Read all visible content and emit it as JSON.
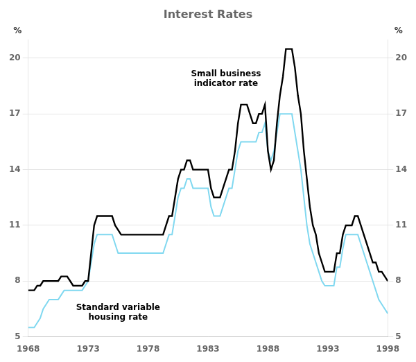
{
  "chart_data": {
    "type": "line",
    "title": "Interest Rates",
    "x": [
      1968.0,
      1968.25,
      1968.5,
      1968.75,
      1969.0,
      1969.25,
      1969.5,
      1969.75,
      1970.0,
      1970.25,
      1970.5,
      1970.75,
      1971.0,
      1971.25,
      1971.5,
      1971.75,
      1972.0,
      1972.25,
      1972.5,
      1972.75,
      1973.0,
      1973.25,
      1973.5,
      1973.75,
      1974.0,
      1974.25,
      1974.5,
      1974.75,
      1975.0,
      1975.25,
      1975.5,
      1975.75,
      1976.0,
      1976.25,
      1976.5,
      1976.75,
      1977.0,
      1977.25,
      1977.5,
      1977.75,
      1978.0,
      1978.25,
      1978.5,
      1978.75,
      1979.0,
      1979.25,
      1979.5,
      1979.75,
      1980.0,
      1980.25,
      1980.5,
      1980.75,
      1981.0,
      1981.25,
      1981.5,
      1981.75,
      1982.0,
      1982.25,
      1982.5,
      1982.75,
      1983.0,
      1983.25,
      1983.5,
      1983.75,
      1984.0,
      1984.25,
      1984.5,
      1984.75,
      1985.0,
      1985.25,
      1985.5,
      1985.75,
      1986.0,
      1986.25,
      1986.5,
      1986.75,
      1987.0,
      1987.25,
      1987.5,
      1987.75,
      1988.0,
      1988.25,
      1988.5,
      1988.75,
      1989.0,
      1989.25,
      1989.5,
      1989.75,
      1990.0,
      1990.25,
      1990.5,
      1990.75,
      1991.0,
      1991.25,
      1991.5,
      1991.75,
      1992.0,
      1992.25,
      1992.5,
      1992.75,
      1993.0,
      1993.25,
      1993.5,
      1993.75,
      1994.0,
      1994.25,
      1994.5,
      1994.75,
      1995.0,
      1995.25,
      1995.5,
      1995.75,
      1996.0,
      1996.25,
      1996.5,
      1996.75,
      1997.0,
      1997.25,
      1997.5,
      1997.75,
      1998.0
    ],
    "series": [
      {
        "color": "#80d8f0",
        "values": [
          5.5,
          5.5,
          5.5,
          5.75,
          6.0,
          6.5,
          6.75,
          7.0,
          7.0,
          7.0,
          7.0,
          7.25,
          7.5,
          7.5,
          7.5,
          7.5,
          7.5,
          7.5,
          7.5,
          7.75,
          8.0,
          9.0,
          10.0,
          10.5,
          10.5,
          10.5,
          10.5,
          10.5,
          10.5,
          10.0,
          9.5,
          9.5,
          9.5,
          9.5,
          9.5,
          9.5,
          9.5,
          9.5,
          9.5,
          9.5,
          9.5,
          9.5,
          9.5,
          9.5,
          9.5,
          9.5,
          10.0,
          10.5,
          10.5,
          11.5,
          12.5,
          13.0,
          13.0,
          13.5,
          13.5,
          13.0,
          13.0,
          13.0,
          13.0,
          13.0,
          13.0,
          12.0,
          11.5,
          11.5,
          11.5,
          12.0,
          12.5,
          13.0,
          13.0,
          14.0,
          15.0,
          15.5,
          15.5,
          15.5,
          15.5,
          15.5,
          15.5,
          16.0,
          16.0,
          16.5,
          15.0,
          14.5,
          15.0,
          16.0,
          17.0,
          17.0,
          17.0,
          17.0,
          17.0,
          16.0,
          15.0,
          14.0,
          12.5,
          11.0,
          10.0,
          9.5,
          9.0,
          8.5,
          8.0,
          7.75,
          7.75,
          7.75,
          7.75,
          8.75,
          8.75,
          9.75,
          10.5,
          10.5,
          10.5,
          10.5,
          10.5,
          10.0,
          9.5,
          9.0,
          8.5,
          8.0,
          7.5,
          7.0,
          6.75,
          6.5,
          6.25
        ]
      },
      {
        "color": "#000000",
        "values": [
          7.5,
          7.5,
          7.5,
          7.75,
          7.75,
          8.0,
          8.0,
          8.0,
          8.0,
          8.0,
          8.0,
          8.25,
          8.25,
          8.25,
          8.0,
          7.75,
          7.75,
          7.75,
          7.75,
          8.0,
          8.0,
          9.5,
          11.0,
          11.5,
          11.5,
          11.5,
          11.5,
          11.5,
          11.5,
          11.0,
          10.75,
          10.5,
          10.5,
          10.5,
          10.5,
          10.5,
          10.5,
          10.5,
          10.5,
          10.5,
          10.5,
          10.5,
          10.5,
          10.5,
          10.5,
          10.5,
          11.0,
          11.5,
          11.5,
          12.5,
          13.5,
          14.0,
          14.0,
          14.5,
          14.5,
          14.0,
          14.0,
          14.0,
          14.0,
          14.0,
          14.0,
          13.0,
          12.5,
          12.5,
          12.5,
          13.0,
          13.5,
          14.0,
          14.0,
          15.0,
          16.5,
          17.5,
          17.5,
          17.5,
          17.0,
          16.5,
          16.5,
          17.0,
          17.0,
          17.5,
          15.0,
          14.0,
          14.5,
          16.5,
          18.0,
          19.0,
          20.5,
          20.5,
          20.5,
          19.5,
          18.0,
          17.0,
          15.0,
          13.5,
          12.0,
          11.0,
          10.5,
          9.5,
          9.0,
          8.5,
          8.5,
          8.5,
          8.5,
          9.5,
          9.5,
          10.5,
          11.0,
          11.0,
          11.0,
          11.5,
          11.5,
          11.0,
          10.5,
          10.0,
          9.5,
          9.0,
          9.0,
          8.5,
          8.5,
          8.25,
          8.0
        ]
      }
    ],
    "xlim": [
      1968,
      1998
    ],
    "xticks": [
      1968,
      1973,
      1978,
      1983,
      1988,
      1993,
      1998
    ],
    "ylim": [
      5,
      21
    ],
    "yticks": [
      5,
      8,
      11,
      14,
      17,
      20
    ],
    "y2lim": [
      5,
      21
    ],
    "y2ticks": [
      5,
      8,
      11,
      14,
      17,
      20
    ],
    "ylabel": "%",
    "y2label": "%",
    "grid": true,
    "annotations": [
      {
        "text": "Small business\nindicator rate",
        "x": 1984.5,
        "y": 18.4
      },
      {
        "text": "Standard variable\nhousing rate",
        "x": 1975.5,
        "y": 6.8
      }
    ]
  }
}
